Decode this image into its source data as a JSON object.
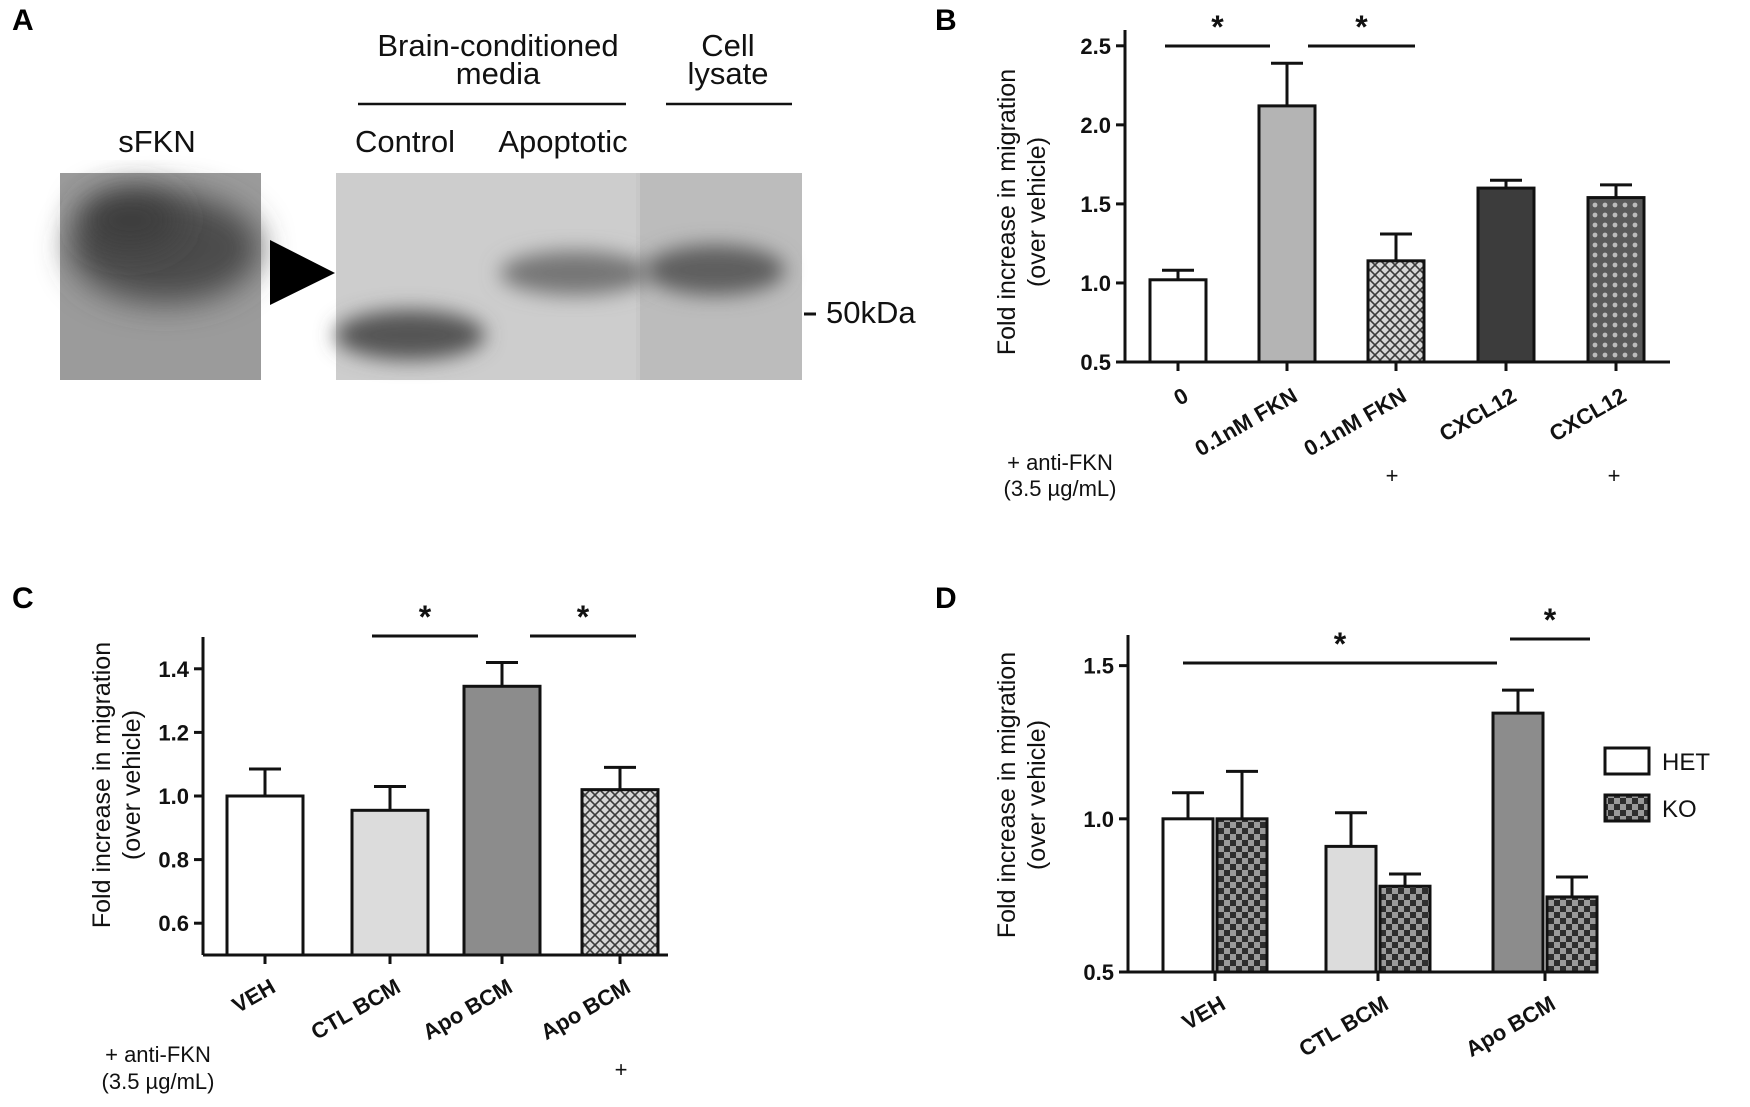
{
  "panels": {
    "A": {
      "letter": "A",
      "sfkn_label": "sFKN",
      "bcm_title_line1": "Brain-conditioned",
      "bcm_title_line2": "media",
      "cell_title_line1": "Cell",
      "cell_title_line2": "lysate",
      "lane_control": "Control",
      "lane_apoptotic": "Apoptotic",
      "marker_label": "50kDa"
    },
    "B": {
      "letter": "B",
      "ylabel_line1": "Fold increase in migration",
      "ylabel_line2": "(over vehicle)",
      "treatment_line1": "+ anti-FKN",
      "treatment_line2": "(3.5 µg/mL)",
      "plus_marks": [
        "",
        "",
        "+",
        "",
        "+"
      ],
      "sig_symbol": "*"
    },
    "C": {
      "letter": "C",
      "ylabel_line1": "Fold increase in migration",
      "ylabel_line2": "(over vehicle)",
      "treatment_line1": "+ anti-FKN",
      "treatment_line2": "(3.5 µg/mL)",
      "plus_marks": [
        "",
        "",
        "",
        "+"
      ],
      "sig_symbol": "*"
    },
    "D": {
      "letter": "D",
      "ylabel_line1": "Fold increase in migration",
      "ylabel_line2": "(over vehicle)",
      "sig_symbol": "*",
      "legend": [
        "HET",
        "KO"
      ]
    }
  },
  "chart_data": [
    {
      "panel": "B",
      "type": "bar",
      "categories": [
        "0",
        "0.1nM FKN",
        "0.1nM FKN",
        "CXCL12",
        "CXCL12"
      ],
      "values": [
        1.02,
        2.12,
        1.14,
        1.6,
        1.54
      ],
      "errors": [
        0.06,
        0.27,
        0.17,
        0.05,
        0.08
      ],
      "ylim": [
        0.5,
        2.6
      ],
      "yticks": [
        0.5,
        1.0,
        1.5,
        2.0,
        2.5
      ],
      "significance": [
        [
          0,
          1
        ],
        [
          1,
          2
        ]
      ],
      "colors": [
        "#ffffff",
        "#b4b4b4",
        "#c8c8c8",
        "#3c3c3c",
        "#646464"
      ]
    },
    {
      "panel": "C",
      "type": "bar",
      "categories": [
        "VEH",
        "CTL BCM",
        "Apo BCM",
        "Apo BCM"
      ],
      "values": [
        1.0,
        0.955,
        1.345,
        1.02
      ],
      "errors": [
        0.085,
        0.075,
        0.075,
        0.07
      ],
      "ylim": [
        0.5,
        1.5
      ],
      "yticks": [
        0.6,
        0.8,
        1.0,
        1.2,
        1.4
      ],
      "significance": [
        [
          1,
          2
        ],
        [
          2,
          3
        ]
      ],
      "colors": [
        "#ffffff",
        "#dcdcdc",
        "#8c8c8c",
        "#646464"
      ]
    },
    {
      "panel": "D",
      "type": "bar",
      "categories": [
        "VEH",
        "CTL BCM",
        "Apo BCM"
      ],
      "series": [
        {
          "name": "HET",
          "values": [
            1.0,
            0.91,
            1.345
          ],
          "errors": [
            0.085,
            0.11,
            0.075
          ]
        },
        {
          "name": "KO",
          "values": [
            1.0,
            0.78,
            0.745
          ],
          "errors": [
            0.155,
            0.04,
            0.065
          ]
        }
      ],
      "het_colors": [
        "#ffffff",
        "#dcdcdc",
        "#8c8c8c"
      ],
      "ylim": [
        0.5,
        1.6
      ],
      "yticks": [
        0.5,
        1.0,
        1.5
      ],
      "significance_labels": [
        "VEH HET vs Apo BCM HET",
        "Apo BCM HET vs Apo BCM KO"
      ]
    }
  ]
}
